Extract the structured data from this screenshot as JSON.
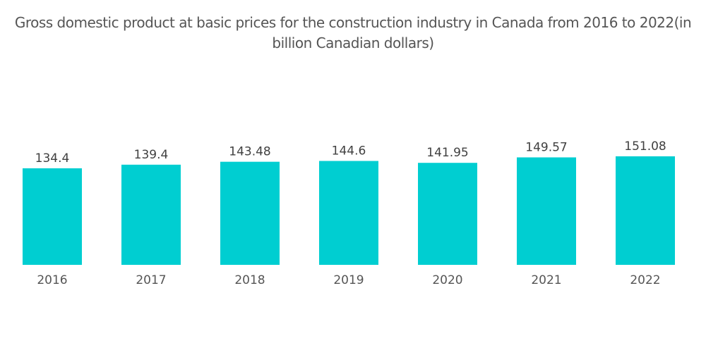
{
  "chart_data": {
    "type": "bar",
    "title": "Gross domestic product at basic prices for the construction industry in Canada from 2016 to 2022(in billion Canadian dollars)",
    "xlabel": "",
    "ylabel": "",
    "categories": [
      "2016",
      "2017",
      "2018",
      "2019",
      "2020",
      "2021",
      "2022"
    ],
    "values": [
      134.4,
      139.4,
      143.48,
      144.6,
      141.95,
      149.57,
      151.08
    ],
    "data_labels": [
      "134.4",
      "139.4",
      "143.48",
      "144.6",
      "141.95",
      "149.57",
      "151.08"
    ],
    "ylim": [
      0,
      151.08
    ],
    "grid": false,
    "legend": "none",
    "bar_color": "#00CED1"
  }
}
